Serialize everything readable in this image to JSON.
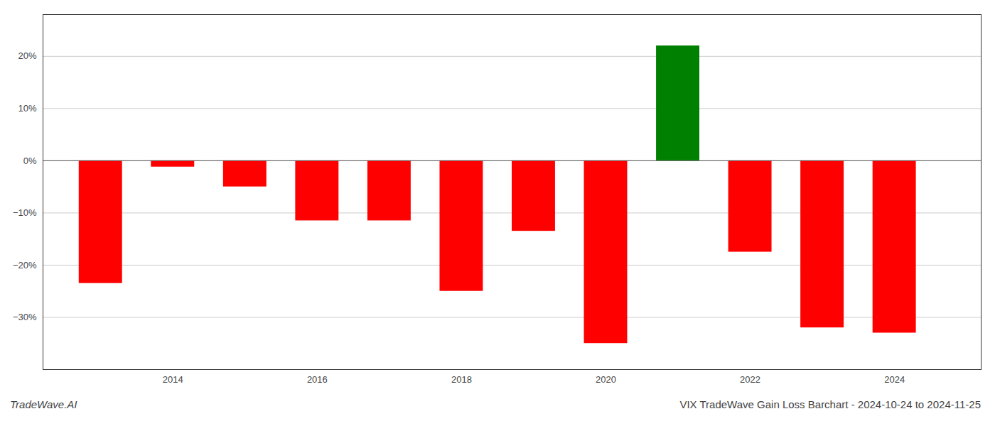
{
  "chart_data": {
    "type": "bar",
    "title": "VIX TradeWave Gain Loss Barchart - 2024-10-24 to 2024-11-25",
    "annotations": [
      "TradeWave.AI"
    ],
    "x": [
      2013,
      2014,
      2015,
      2016,
      2017,
      2018,
      2019,
      2020,
      2021,
      2022,
      2023,
      2024
    ],
    "values": [
      -23.5,
      -1.2,
      -5.0,
      -11.5,
      -11.5,
      -25.0,
      -13.5,
      -35.0,
      22.0,
      -17.5,
      -32.0,
      -33.0
    ],
    "colors": [
      "#ff0000",
      "#ff0000",
      "#ff0000",
      "#ff0000",
      "#ff0000",
      "#ff0000",
      "#ff0000",
      "#ff0000",
      "#008000",
      "#ff0000",
      "#ff0000",
      "#ff0000"
    ],
    "xlim": [
      2012.2,
      2025.2
    ],
    "xticks": [
      2014,
      2016,
      2018,
      2020,
      2022,
      2024
    ],
    "ylim": [
      -40,
      28
    ],
    "yticks": [
      {
        "value": -30,
        "label": "−30%"
      },
      {
        "value": -20,
        "label": "−20%"
      },
      {
        "value": -10,
        "label": "−10%"
      },
      {
        "value": 0,
        "label": "0%"
      },
      {
        "value": 10,
        "label": "10%"
      },
      {
        "value": 20,
        "label": "20%"
      }
    ],
    "grid": true
  }
}
